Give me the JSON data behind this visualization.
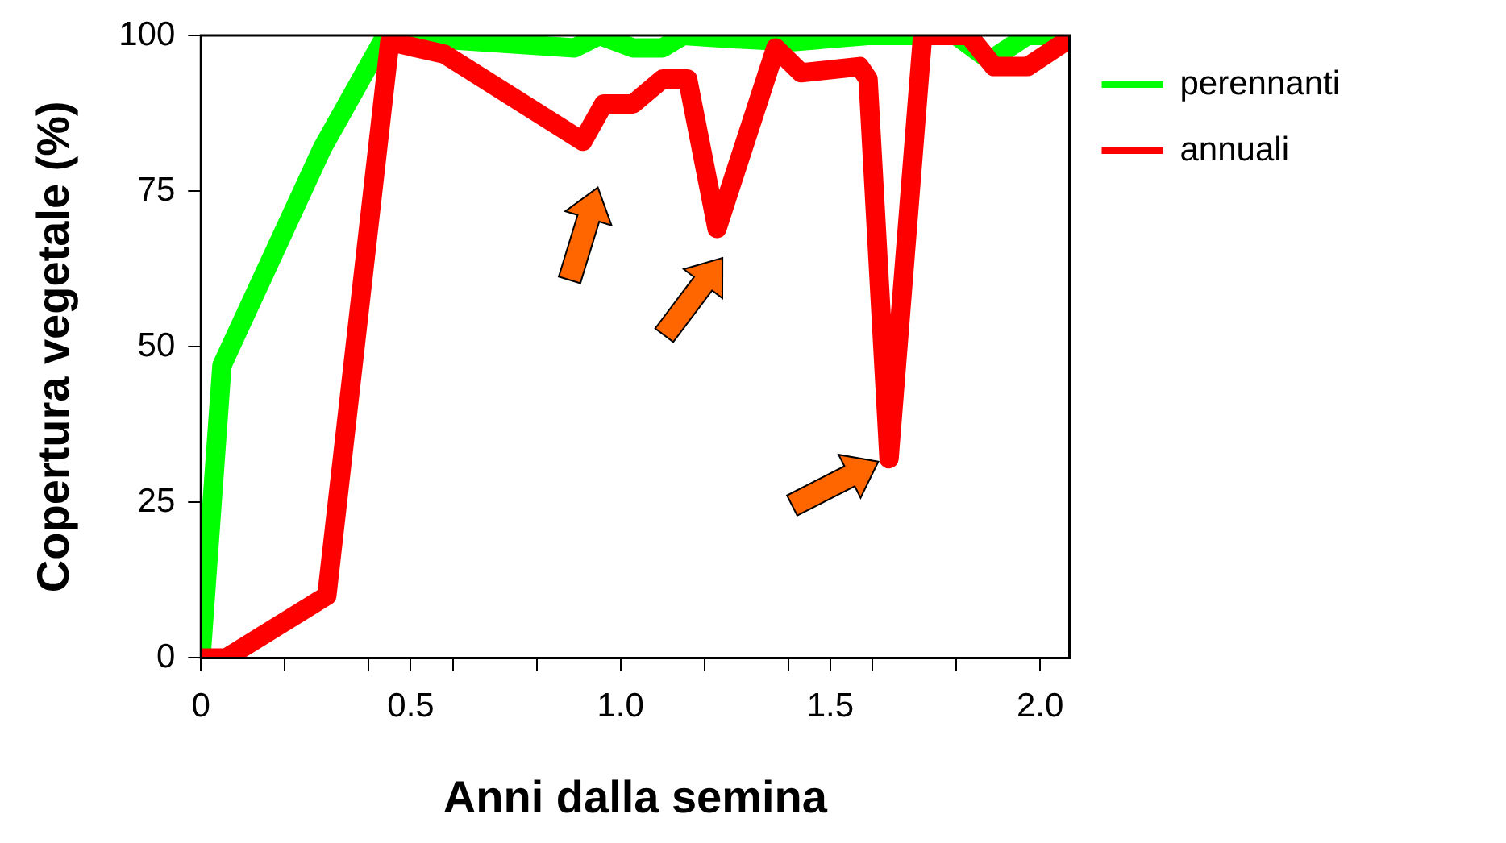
{
  "chart_data": {
    "type": "line",
    "xlabel": "Anni dalla semina",
    "ylabel": "Copertura vegetale (%)",
    "xlim": [
      0,
      2.07
    ],
    "xticks": [
      0,
      {
        "value": 0.2,
        "label": null
      },
      {
        "value": 0.4,
        "label": null
      },
      0.5,
      {
        "value": 0.6,
        "label": null
      },
      {
        "value": 0.8,
        "label": null
      },
      {
        "value": 1,
        "label": "1.0"
      },
      {
        "value": 1.2,
        "label": null
      },
      {
        "value": 1.4,
        "label": null
      },
      1.5,
      {
        "value": 1.6,
        "label": null
      },
      {
        "value": 1.8,
        "label": null
      },
      {
        "value": 2,
        "label": "2.0"
      }
    ],
    "ylim": [
      0,
      100
    ],
    "yticks": [
      0,
      25,
      50,
      75,
      100
    ],
    "grid": false,
    "legend": "top right",
    "marker": "none",
    "line_style": "solid",
    "series": [
      {
        "name": "perennanti",
        "color": "#00ff00",
        "x": [
          0,
          0.05,
          0.29,
          0.44,
          0.89,
          0.95,
          1.03,
          1.1,
          1.15,
          1.26,
          1.41,
          1.59,
          1.8,
          1.88,
          1.97,
          2.06
        ],
        "values": [
          0,
          47,
          82,
          100,
          98,
          100,
          98,
          98,
          100,
          99.5,
          99,
          100,
          100,
          96,
          100,
          100
        ]
      },
      {
        "name": "annuali",
        "color": "#ff0000",
        "x": [
          0,
          0.06,
          0.3,
          0.45,
          0.58,
          0.91,
          0.96,
          1.03,
          1.1,
          1.16,
          1.23,
          1.37,
          1.43,
          1.57,
          1.59,
          1.64,
          1.72,
          1.83,
          1.89,
          1.97,
          2.06
        ],
        "values": [
          0,
          0,
          10,
          99,
          97,
          83,
          89,
          89,
          93,
          93,
          69,
          98,
          94,
          95,
          93,
          32,
          100,
          100,
          95,
          95,
          99
        ]
      }
    ]
  }
}
